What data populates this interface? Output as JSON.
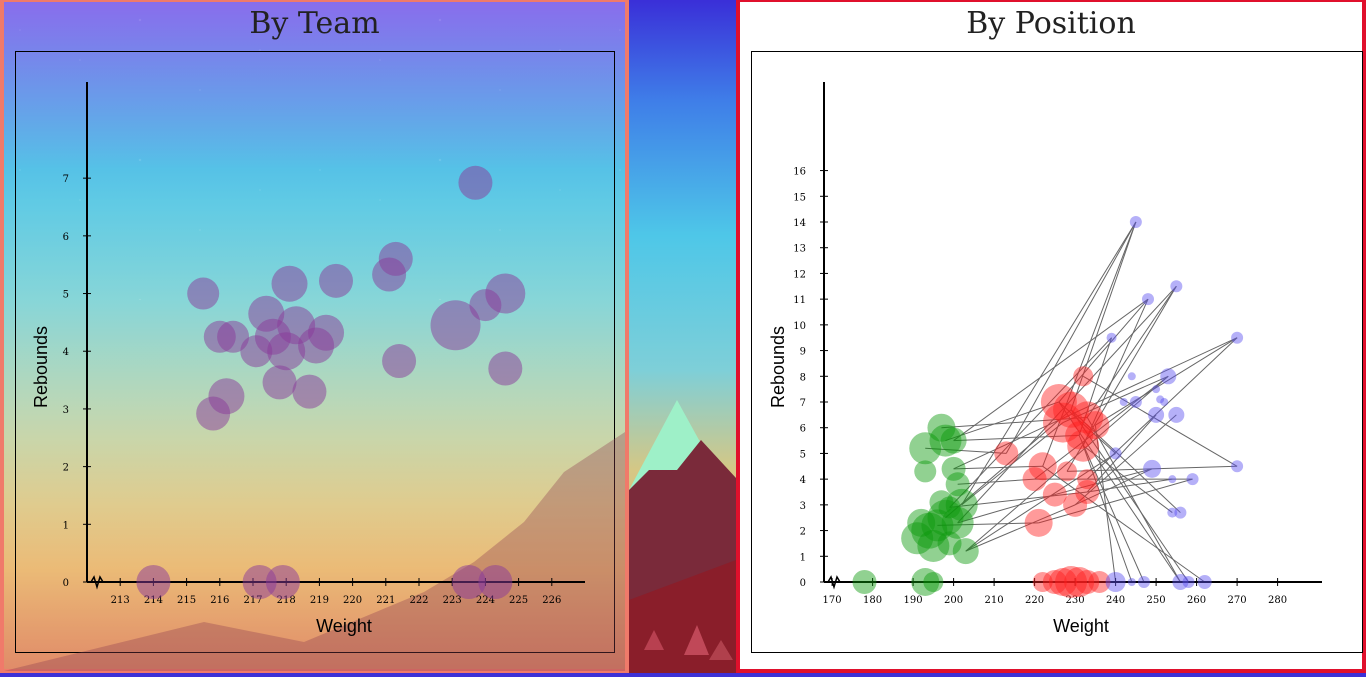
{
  "colors": {
    "left_border": "#f07a6a",
    "right_border": "#e0102c",
    "team_bubble": "#8a3a9a",
    "guard": "#0a9a0a",
    "forward": "#ff2020",
    "center": "#5a4ff0",
    "link_line": "#666666"
  },
  "chart_data": [
    {
      "type": "scatter",
      "title": "By Team",
      "xlabel": "Weight",
      "ylabel": "Rebounds",
      "xlim": [
        212,
        227
      ],
      "ylim": [
        0,
        7.8
      ],
      "xticks": [
        213,
        214,
        215,
        216,
        217,
        218,
        219,
        220,
        221,
        222,
        223,
        224,
        225,
        226
      ],
      "yticks": [
        0,
        1,
        2,
        3,
        4,
        5,
        6,
        7
      ],
      "axis_break": true,
      "series": [
        {
          "points": [
            {
              "x": 214.0,
              "y": 0,
              "size": 17
            },
            {
              "x": 217.2,
              "y": 0,
              "size": 17
            },
            {
              "x": 217.9,
              "y": 0,
              "size": 17
            },
            {
              "x": 223.5,
              "y": 0,
              "size": 17
            },
            {
              "x": 224.3,
              "y": 0,
              "size": 17
            },
            {
              "x": 223.7,
              "y": 6.92,
              "size": 17
            },
            {
              "x": 221.3,
              "y": 5.6,
              "size": 17
            },
            {
              "x": 221.1,
              "y": 5.33,
              "size": 17
            },
            {
              "x": 219.5,
              "y": 5.22,
              "size": 17
            },
            {
              "x": 218.1,
              "y": 5.17,
              "size": 18
            },
            {
              "x": 215.5,
              "y": 5.0,
              "size": 16
            },
            {
              "x": 217.4,
              "y": 4.65,
              "size": 18
            },
            {
              "x": 217.6,
              "y": 4.25,
              "size": 18
            },
            {
              "x": 216.4,
              "y": 4.25,
              "size": 16
            },
            {
              "x": 216.0,
              "y": 4.25,
              "size": 16
            },
            {
              "x": 218.3,
              "y": 4.45,
              "size": 19
            },
            {
              "x": 219.2,
              "y": 4.32,
              "size": 18
            },
            {
              "x": 217.1,
              "y": 4.0,
              "size": 16
            },
            {
              "x": 218.0,
              "y": 4.0,
              "size": 19
            },
            {
              "x": 218.9,
              "y": 4.1,
              "size": 18
            },
            {
              "x": 221.4,
              "y": 3.83,
              "size": 17
            },
            {
              "x": 223.1,
              "y": 4.45,
              "size": 25
            },
            {
              "x": 224.0,
              "y": 4.8,
              "size": 16
            },
            {
              "x": 224.6,
              "y": 5.0,
              "size": 20
            },
            {
              "x": 224.6,
              "y": 3.7,
              "size": 17
            },
            {
              "x": 216.2,
              "y": 3.22,
              "size": 18
            },
            {
              "x": 215.8,
              "y": 2.92,
              "size": 17
            },
            {
              "x": 217.8,
              "y": 3.46,
              "size": 17
            },
            {
              "x": 218.7,
              "y": 3.3,
              "size": 17
            }
          ]
        }
      ]
    },
    {
      "type": "scatter",
      "title": "By Position",
      "xlabel": "Weight",
      "ylabel": "Rebounds",
      "xlim": [
        168,
        288
      ],
      "ylim": [
        0,
        17.5
      ],
      "xticks": [
        170,
        180,
        190,
        200,
        210,
        220,
        230,
        240,
        250,
        260,
        270,
        280
      ],
      "yticks": [
        0,
        1,
        2,
        3,
        4,
        5,
        6,
        7,
        8,
        9,
        10,
        11,
        12,
        13,
        14,
        15,
        16
      ],
      "axis_break": true,
      "series": [
        {
          "points": [
            {
              "x": 178,
              "y": 0,
              "size": 12
            },
            {
              "x": 193,
              "y": 0,
              "size": 14
            },
            {
              "x": 195,
              "y": 0,
              "size": 10
            },
            {
              "x": 197,
              "y": 6.0,
              "size": 14
            },
            {
              "x": 198,
              "y": 5.5,
              "size": 16
            },
            {
              "x": 193,
              "y": 5.2,
              "size": 16
            },
            {
              "x": 200,
              "y": 5.5,
              "size": 13
            },
            {
              "x": 200,
              "y": 4.4,
              "size": 12
            },
            {
              "x": 193,
              "y": 4.3,
              "size": 11
            },
            {
              "x": 201,
              "y": 3.8,
              "size": 12
            },
            {
              "x": 202,
              "y": 3.0,
              "size": 16
            },
            {
              "x": 197,
              "y": 3.1,
              "size": 12
            },
            {
              "x": 199,
              "y": 2.9,
              "size": 11
            },
            {
              "x": 192,
              "y": 2.3,
              "size": 14
            },
            {
              "x": 194,
              "y": 2.0,
              "size": 18
            },
            {
              "x": 196,
              "y": 2.2,
              "size": 16
            },
            {
              "x": 198,
              "y": 2.5,
              "size": 18
            },
            {
              "x": 201,
              "y": 2.3,
              "size": 16
            },
            {
              "x": 191,
              "y": 1.7,
              "size": 16
            },
            {
              "x": 195,
              "y": 1.4,
              "size": 16
            },
            {
              "x": 199,
              "y": 1.5,
              "size": 12
            },
            {
              "x": 203,
              "y": 1.2,
              "size": 13
            }
          ]
        },
        {
          "points": [
            {
              "x": 222,
              "y": 0,
              "size": 10
            },
            {
              "x": 225,
              "y": 0,
              "size": 12
            },
            {
              "x": 227,
              "y": 0,
              "size": 14
            },
            {
              "x": 229,
              "y": 0,
              "size": 16
            },
            {
              "x": 231,
              "y": 0,
              "size": 15
            },
            {
              "x": 233,
              "y": 0,
              "size": 12
            },
            {
              "x": 236,
              "y": 0,
              "size": 11
            },
            {
              "x": 232,
              "y": 8.0,
              "size": 10
            },
            {
              "x": 226,
              "y": 7.0,
              "size": 18
            },
            {
              "x": 229,
              "y": 6.7,
              "size": 18
            },
            {
              "x": 233,
              "y": 6.4,
              "size": 16
            },
            {
              "x": 227,
              "y": 6.2,
              "size": 20
            },
            {
              "x": 235,
              "y": 6.1,
              "size": 14
            },
            {
              "x": 231,
              "y": 5.7,
              "size": 14
            },
            {
              "x": 232,
              "y": 5.3,
              "size": 16
            },
            {
              "x": 213,
              "y": 5.0,
              "size": 12
            },
            {
              "x": 222,
              "y": 4.5,
              "size": 14
            },
            {
              "x": 228,
              "y": 4.3,
              "size": 10
            },
            {
              "x": 220,
              "y": 4.0,
              "size": 12
            },
            {
              "x": 233,
              "y": 4.0,
              "size": 10
            },
            {
              "x": 233,
              "y": 3.5,
              "size": 12
            },
            {
              "x": 225,
              "y": 3.4,
              "size": 12
            },
            {
              "x": 230,
              "y": 3.0,
              "size": 12
            },
            {
              "x": 221,
              "y": 2.3,
              "size": 14
            }
          ]
        },
        {
          "points": [
            {
              "x": 240,
              "y": 0,
              "size": 10
            },
            {
              "x": 244,
              "y": 0,
              "size": 4
            },
            {
              "x": 247,
              "y": 0,
              "size": 6
            },
            {
              "x": 256,
              "y": 0,
              "size": 8
            },
            {
              "x": 258,
              "y": 0,
              "size": 6
            },
            {
              "x": 262,
              "y": 0,
              "size": 7
            },
            {
              "x": 245,
              "y": 14.0,
              "size": 6
            },
            {
              "x": 255,
              "y": 11.5,
              "size": 6
            },
            {
              "x": 248,
              "y": 11.0,
              "size": 6
            },
            {
              "x": 239,
              "y": 9.5,
              "size": 5
            },
            {
              "x": 270,
              "y": 9.5,
              "size": 6
            },
            {
              "x": 244,
              "y": 8.0,
              "size": 4
            },
            {
              "x": 253,
              "y": 8.0,
              "size": 8
            },
            {
              "x": 250,
              "y": 7.5,
              "size": 4
            },
            {
              "x": 251,
              "y": 7.1,
              "size": 4
            },
            {
              "x": 242,
              "y": 7.0,
              "size": 4
            },
            {
              "x": 245,
              "y": 7.0,
              "size": 6
            },
            {
              "x": 252,
              "y": 7.0,
              "size": 4
            },
            {
              "x": 250,
              "y": 6.5,
              "size": 8
            },
            {
              "x": 255,
              "y": 6.5,
              "size": 8
            },
            {
              "x": 240,
              "y": 5.0,
              "size": 6
            },
            {
              "x": 249,
              "y": 4.4,
              "size": 9
            },
            {
              "x": 259,
              "y": 4.0,
              "size": 6
            },
            {
              "x": 254,
              "y": 4.0,
              "size": 4
            },
            {
              "x": 270,
              "y": 4.5,
              "size": 6
            },
            {
              "x": 254,
              "y": 2.7,
              "size": 5
            },
            {
              "x": 256,
              "y": 2.7,
              "size": 6
            }
          ]
        }
      ],
      "links": [
        [
          [
            245,
            14
          ],
          [
            229,
            6.7
          ]
        ],
        [
          [
            245,
            14
          ],
          [
            222,
            4.5
          ]
        ],
        [
          [
            245,
            14
          ],
          [
            213,
            5.0
          ]
        ],
        [
          [
            255,
            11.5
          ],
          [
            233,
            6.4
          ]
        ],
        [
          [
            255,
            11.5
          ],
          [
            228,
            4.3
          ]
        ],
        [
          [
            248,
            11.0
          ],
          [
            226,
            7.0
          ]
        ],
        [
          [
            248,
            11.0
          ],
          [
            232,
            5.3
          ]
        ],
        [
          [
            239,
            9.5
          ],
          [
            231,
            5.7
          ]
        ],
        [
          [
            270,
            9.5
          ],
          [
            235,
            6.1
          ]
        ],
        [
          [
            270,
            9.5
          ],
          [
            233,
            4.0
          ]
        ],
        [
          [
            253,
            8.0
          ],
          [
            227,
            6.2
          ]
        ],
        [
          [
            253,
            8.0
          ],
          [
            220,
            4.0
          ]
        ],
        [
          [
            250,
            6.5
          ],
          [
            233,
            3.5
          ]
        ],
        [
          [
            255,
            6.5
          ],
          [
            230,
            3.0
          ]
        ],
        [
          [
            249,
            4.4
          ],
          [
            225,
            3.4
          ]
        ],
        [
          [
            259,
            4.0
          ],
          [
            221,
            2.3
          ]
        ],
        [
          [
            270,
            4.5
          ],
          [
            232,
            8.0
          ]
        ],
        [
          [
            254,
            2.7
          ],
          [
            232,
            5.3
          ]
        ],
        [
          [
            256,
            2.7
          ],
          [
            229,
            6.7
          ]
        ],
        [
          [
            240,
            5.0
          ],
          [
            226,
            7.0
          ]
        ],
        [
          [
            197,
            6.0
          ],
          [
            233,
            6.4
          ]
        ],
        [
          [
            198,
            5.5
          ],
          [
            226,
            7.0
          ]
        ],
        [
          [
            200,
            5.5
          ],
          [
            231,
            5.7
          ]
        ],
        [
          [
            193,
            5.2
          ],
          [
            213,
            5.0
          ]
        ],
        [
          [
            200,
            4.4
          ],
          [
            222,
            4.5
          ]
        ],
        [
          [
            201,
            3.8
          ],
          [
            220,
            4.0
          ]
        ],
        [
          [
            202,
            3.0
          ],
          [
            227,
            6.2
          ]
        ],
        [
          [
            199,
            2.9
          ],
          [
            233,
            3.5
          ]
        ],
        [
          [
            201,
            2.3
          ],
          [
            225,
            3.4
          ]
        ],
        [
          [
            198,
            2.5
          ],
          [
            229,
            6.7
          ]
        ],
        [
          [
            203,
            1.2
          ],
          [
            230,
            3.0
          ]
        ],
        [
          [
            196,
            2.2
          ],
          [
            221,
            2.3
          ]
        ],
        [
          [
            202,
            3.0
          ],
          [
            245,
            14
          ]
        ],
        [
          [
            200,
            5.5
          ],
          [
            248,
            11.0
          ]
        ],
        [
          [
            201,
            2.3
          ],
          [
            255,
            11.5
          ]
        ],
        [
          [
            199,
            2.9
          ],
          [
            239,
            9.5
          ]
        ],
        [
          [
            203,
            1.2
          ],
          [
            253,
            8.0
          ]
        ],
        [
          [
            200,
            4.4
          ],
          [
            270,
            9.5
          ]
        ],
        [
          [
            233,
            6.4
          ],
          [
            256,
            0
          ]
        ],
        [
          [
            229,
            6.7
          ],
          [
            258,
            0
          ]
        ],
        [
          [
            232,
            5.3
          ],
          [
            244,
            0
          ]
        ],
        [
          [
            222,
            4.5
          ],
          [
            262,
            0
          ]
        ],
        [
          [
            240,
            5.0
          ],
          [
            203,
            1.2
          ]
        ],
        [
          [
            231,
            5.7
          ],
          [
            247,
            0
          ]
        ],
        [
          [
            235,
            6.1
          ],
          [
            240,
            0
          ]
        ],
        [
          [
            226,
            7.0
          ],
          [
            256,
            0
          ]
        ],
        [
          [
            228,
            4.3
          ],
          [
            270,
            4.5
          ]
        ],
        [
          [
            220,
            4.0
          ],
          [
            259,
            4.0
          ]
        ],
        [
          [
            233,
            3.5
          ],
          [
            254,
            4.0
          ]
        ],
        [
          [
            230,
            3.0
          ],
          [
            249,
            4.4
          ]
        ]
      ]
    }
  ]
}
